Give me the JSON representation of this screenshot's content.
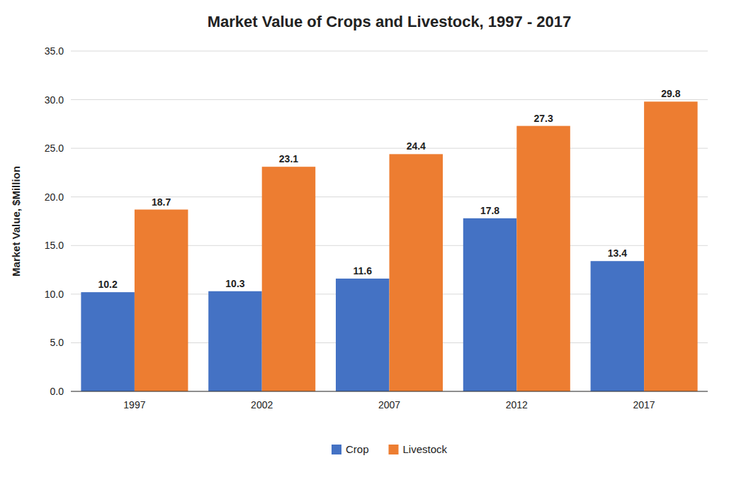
{
  "chart_data": {
    "type": "bar",
    "title": "Market Value of Crops and Livestock, 1997 - 2017",
    "ylabel": "Market Value, $Million",
    "categories": [
      "1997",
      "2002",
      "2007",
      "2012",
      "2017"
    ],
    "series": [
      {
        "name": "Crop",
        "color": "#4472C4",
        "values": [
          10.2,
          10.3,
          11.6,
          17.8,
          13.4
        ]
      },
      {
        "name": "Livestock",
        "color": "#ED7D31",
        "values": [
          18.7,
          23.1,
          24.4,
          27.3,
          29.8
        ]
      }
    ],
    "ylim": [
      0,
      35
    ],
    "yticks": [
      {
        "value": 0,
        "label": "0.0"
      },
      {
        "value": 5,
        "label": "5.0"
      },
      {
        "value": 10,
        "label": "10.0"
      },
      {
        "value": 15,
        "label": "15.0"
      },
      {
        "value": 20,
        "label": "20.0"
      },
      {
        "value": 25,
        "label": "25.0"
      },
      {
        "value": 30,
        "label": "30.0"
      },
      {
        "value": 35,
        "label": "35.0"
      }
    ],
    "grid": true,
    "legend": "bottom",
    "data_labels": true
  }
}
